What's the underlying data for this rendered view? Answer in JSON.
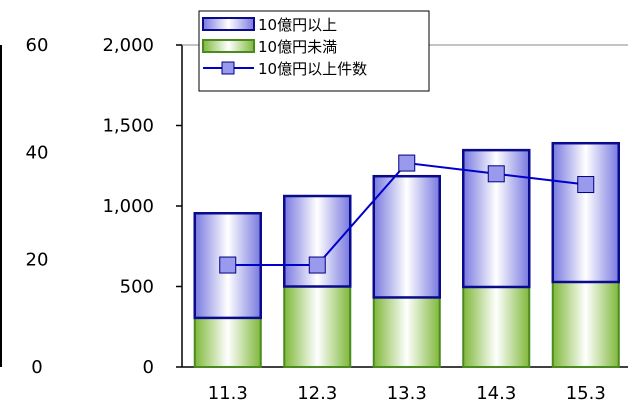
{
  "chart_data": {
    "type": "bar",
    "stacked": true,
    "categories": [
      "11.3",
      "12.3",
      "13.3",
      "14.3",
      "15.3"
    ],
    "series": [
      {
        "name": "10億円未満",
        "type": "bar",
        "axis": "left",
        "values": [
          305,
          500,
          432,
          497,
          528
        ],
        "color": "#7ab43a"
      },
      {
        "name": "10億円以上",
        "type": "bar",
        "axis": "left",
        "values": [
          650,
          562,
          753,
          850,
          862
        ],
        "color": "#0a0a8c"
      },
      {
        "name": "10億円以上件数",
        "type": "line",
        "axis": "right",
        "values": [
          19,
          19,
          38,
          36,
          34
        ],
        "color": "#0000cc",
        "marker": "square"
      }
    ],
    "y_left": {
      "ticks": [
        "0",
        "500",
        "1,000",
        "1,500",
        "2,000"
      ],
      "range": [
        0,
        2000
      ]
    },
    "y_right": {
      "ticks": [
        "0",
        "20",
        "40",
        "60"
      ],
      "range": [
        0,
        60
      ]
    },
    "legend": {
      "position": "top-left",
      "order": [
        "10億円以上",
        "10億円未満",
        "10億円以上件数"
      ]
    },
    "grid": false
  }
}
